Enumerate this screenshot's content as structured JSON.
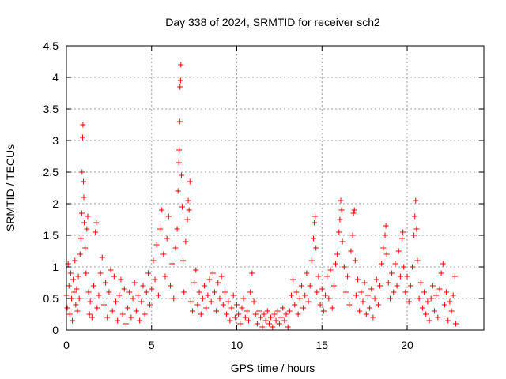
{
  "chart_data": {
    "type": "scatter",
    "title": "Day 338 of 2024, SRMTID for receiver sch2",
    "xlabel": "GPS time / hours",
    "ylabel": "SRMTID / TECUs",
    "xlim": [
      0,
      24.5
    ],
    "ylim": [
      0,
      4.5
    ],
    "xticks": [
      0,
      5,
      10,
      15,
      20
    ],
    "xtick_labels": [
      "0",
      "5",
      "10",
      "15",
      "20"
    ],
    "yticks": [
      0,
      0.5,
      1,
      1.5,
      2,
      2.5,
      3,
      3.5,
      4,
      4.5
    ],
    "ytick_labels": [
      "0",
      "0.5",
      "1",
      "1.5",
      "2",
      "2.5",
      "3",
      "3.5",
      "4",
      "4.5"
    ],
    "grid": true,
    "marker": "plus",
    "marker_color": "#ff0000",
    "series": [
      {
        "name": "sch2",
        "points": [
          [
            0.0,
            0.55
          ],
          [
            0.05,
            0.35
          ],
          [
            0.1,
            1.05
          ],
          [
            0.15,
            0.7
          ],
          [
            0.2,
            0.25
          ],
          [
            0.25,
            0.9
          ],
          [
            0.3,
            0.5
          ],
          [
            0.35,
            0.15
          ],
          [
            0.4,
            0.8
          ],
          [
            0.45,
            0.6
          ],
          [
            0.5,
            1.1
          ],
          [
            0.55,
            0.4
          ],
          [
            0.6,
            0.65
          ],
          [
            0.65,
            0.3
          ],
          [
            0.7,
            0.85
          ],
          [
            0.75,
            0.5
          ],
          [
            0.8,
            1.2
          ],
          [
            0.85,
            1.45
          ],
          [
            0.9,
            1.85
          ],
          [
            0.92,
            2.5
          ],
          [
            0.95,
            3.05
          ],
          [
            0.97,
            3.25
          ],
          [
            1.0,
            2.35
          ],
          [
            1.02,
            2.1
          ],
          [
            1.05,
            1.7
          ],
          [
            1.1,
            1.3
          ],
          [
            1.15,
            0.9
          ],
          [
            1.2,
            1.6
          ],
          [
            1.25,
            1.8
          ],
          [
            1.3,
            0.6
          ],
          [
            1.35,
            0.25
          ],
          [
            1.4,
            0.45
          ],
          [
            1.5,
            0.2
          ],
          [
            1.6,
            0.7
          ],
          [
            1.7,
            1.55
          ],
          [
            1.75,
            1.7
          ],
          [
            1.8,
            0.35
          ],
          [
            1.9,
            0.55
          ],
          [
            2.0,
            0.9
          ],
          [
            2.1,
            1.15
          ],
          [
            2.2,
            0.4
          ],
          [
            2.3,
            0.75
          ],
          [
            2.4,
            0.2
          ],
          [
            2.5,
            0.6
          ],
          [
            2.6,
            0.95
          ],
          [
            2.7,
            0.3
          ],
          [
            2.8,
            0.85
          ],
          [
            2.9,
            0.45
          ],
          [
            3.0,
            0.15
          ],
          [
            3.1,
            0.55
          ],
          [
            3.2,
            0.8
          ],
          [
            3.3,
            0.25
          ],
          [
            3.4,
            0.65
          ],
          [
            3.5,
            0.1
          ],
          [
            3.6,
            0.35
          ],
          [
            3.7,
            0.6
          ],
          [
            3.8,
            0.2
          ],
          [
            3.9,
            0.5
          ],
          [
            4.0,
            0.75
          ],
          [
            4.1,
            0.3
          ],
          [
            4.2,
            0.55
          ],
          [
            4.3,
            0.15
          ],
          [
            4.4,
            0.45
          ],
          [
            4.5,
            0.7
          ],
          [
            4.6,
            0.25
          ],
          [
            4.7,
            0.6
          ],
          [
            4.8,
            0.9
          ],
          [
            4.9,
            0.4
          ],
          [
            5.0,
            0.65
          ],
          [
            5.1,
            1.1
          ],
          [
            5.2,
            0.8
          ],
          [
            5.3,
            1.35
          ],
          [
            5.4,
            0.55
          ],
          [
            5.5,
            1.6
          ],
          [
            5.6,
            1.9
          ],
          [
            5.7,
            1.2
          ],
          [
            5.8,
            0.85
          ],
          [
            5.9,
            1.45
          ],
          [
            6.0,
            1.8
          ],
          [
            6.1,
            0.7
          ],
          [
            6.2,
            1.05
          ],
          [
            6.3,
            0.5
          ],
          [
            6.4,
            1.3
          ],
          [
            6.5,
            1.6
          ],
          [
            6.55,
            2.2
          ],
          [
            6.6,
            2.65
          ],
          [
            6.62,
            2.85
          ],
          [
            6.65,
            3.3
          ],
          [
            6.67,
            3.85
          ],
          [
            6.7,
            3.95
          ],
          [
            6.72,
            4.2
          ],
          [
            6.75,
            2.45
          ],
          [
            6.8,
            1.95
          ],
          [
            6.85,
            1.1
          ],
          [
            6.9,
            0.6
          ],
          [
            7.0,
            1.4
          ],
          [
            7.1,
            1.75
          ],
          [
            7.15,
            2.05
          ],
          [
            7.2,
            1.9
          ],
          [
            7.25,
            2.35
          ],
          [
            7.3,
            0.45
          ],
          [
            7.4,
            0.3
          ],
          [
            7.5,
            0.75
          ],
          [
            7.6,
            0.95
          ],
          [
            7.7,
            0.4
          ],
          [
            7.8,
            0.6
          ],
          [
            7.9,
            0.25
          ],
          [
            8.0,
            0.5
          ],
          [
            8.1,
            0.7
          ],
          [
            8.2,
            0.35
          ],
          [
            8.3,
            0.55
          ],
          [
            8.4,
            0.8
          ],
          [
            8.5,
            0.45
          ],
          [
            8.6,
            0.9
          ],
          [
            8.7,
            0.6
          ],
          [
            8.8,
            0.3
          ],
          [
            8.9,
            0.75
          ],
          [
            9.0,
            0.5
          ],
          [
            9.1,
            0.85
          ],
          [
            9.2,
            0.4
          ],
          [
            9.3,
            0.6
          ],
          [
            9.4,
            0.25
          ],
          [
            9.5,
            0.45
          ],
          [
            9.6,
            0.15
          ],
          [
            9.7,
            0.35
          ],
          [
            9.8,
            0.55
          ],
          [
            9.9,
            0.2
          ],
          [
            10.0,
            0.4
          ],
          [
            10.1,
            0.25
          ],
          [
            10.2,
            0.1
          ],
          [
            10.3,
            0.35
          ],
          [
            10.4,
            0.5
          ],
          [
            10.5,
            0.2
          ],
          [
            10.6,
            0.3
          ],
          [
            10.7,
            0.15
          ],
          [
            10.8,
            0.6
          ],
          [
            10.9,
            0.9
          ],
          [
            11.0,
            0.45
          ],
          [
            11.1,
            0.25
          ],
          [
            11.2,
            0.1
          ],
          [
            11.3,
            0.3
          ],
          [
            11.4,
            0.2
          ],
          [
            11.5,
            0.05
          ],
          [
            11.6,
            0.25
          ],
          [
            11.7,
            0.15
          ],
          [
            11.8,
            0.3
          ],
          [
            11.9,
            0.1
          ],
          [
            12.0,
            0.2
          ],
          [
            12.1,
            0.05
          ],
          [
            12.2,
            0.25
          ],
          [
            12.3,
            0.15
          ],
          [
            12.4,
            0.3
          ],
          [
            12.5,
            0.1
          ],
          [
            12.6,
            0.2
          ],
          [
            12.7,
            0.35
          ],
          [
            12.8,
            0.15
          ],
          [
            12.9,
            0.25
          ],
          [
            13.0,
            0.05
          ],
          [
            13.1,
            0.3
          ],
          [
            13.2,
            0.55
          ],
          [
            13.3,
            0.8
          ],
          [
            13.4,
            0.4
          ],
          [
            13.5,
            0.6
          ],
          [
            13.6,
            0.25
          ],
          [
            13.7,
            0.5
          ],
          [
            13.8,
            0.7
          ],
          [
            13.9,
            0.35
          ],
          [
            14.0,
            0.55
          ],
          [
            14.1,
            0.9
          ],
          [
            14.2,
            0.45
          ],
          [
            14.3,
            0.7
          ],
          [
            14.4,
            1.1
          ],
          [
            14.5,
            1.45
          ],
          [
            14.55,
            1.7
          ],
          [
            14.6,
            1.8
          ],
          [
            14.65,
            1.3
          ],
          [
            14.7,
            0.6
          ],
          [
            14.8,
            0.85
          ],
          [
            14.9,
            0.4
          ],
          [
            15.0,
            0.65
          ],
          [
            15.1,
            0.3
          ],
          [
            15.2,
            0.55
          ],
          [
            15.3,
            0.85
          ],
          [
            15.4,
            0.5
          ],
          [
            15.5,
            0.95
          ],
          [
            15.6,
            0.35
          ],
          [
            15.7,
            0.7
          ],
          [
            15.8,
            1.05
          ],
          [
            15.9,
            1.2
          ],
          [
            16.0,
            1.55
          ],
          [
            16.05,
            1.75
          ],
          [
            16.1,
            2.05
          ],
          [
            16.15,
            1.9
          ],
          [
            16.2,
            1.4
          ],
          [
            16.3,
            1.0
          ],
          [
            16.4,
            0.6
          ],
          [
            16.5,
            0.85
          ],
          [
            16.6,
            0.4
          ],
          [
            16.7,
            1.25
          ],
          [
            16.8,
            1.5
          ],
          [
            16.85,
            1.85
          ],
          [
            16.9,
            1.9
          ],
          [
            16.95,
            1.1
          ],
          [
            17.0,
            0.55
          ],
          [
            17.1,
            0.8
          ],
          [
            17.2,
            0.3
          ],
          [
            17.3,
            0.6
          ],
          [
            17.4,
            0.45
          ],
          [
            17.5,
            0.75
          ],
          [
            17.6,
            0.25
          ],
          [
            17.7,
            0.55
          ],
          [
            17.8,
            0.35
          ],
          [
            17.9,
            0.65
          ],
          [
            18.0,
            0.2
          ],
          [
            18.1,
            0.5
          ],
          [
            18.2,
            0.8
          ],
          [
            18.3,
            0.4
          ],
          [
            18.4,
            0.7
          ],
          [
            18.5,
            1.05
          ],
          [
            18.6,
            1.3
          ],
          [
            18.7,
            1.5
          ],
          [
            18.75,
            1.65
          ],
          [
            18.8,
            1.2
          ],
          [
            18.9,
            0.75
          ],
          [
            19.0,
            0.5
          ],
          [
            19.1,
            0.9
          ],
          [
            19.2,
            0.6
          ],
          [
            19.3,
            1.05
          ],
          [
            19.4,
            0.7
          ],
          [
            19.5,
            1.25
          ],
          [
            19.6,
            0.85
          ],
          [
            19.7,
            1.45
          ],
          [
            19.75,
            1.55
          ],
          [
            19.8,
            1.0
          ],
          [
            19.9,
            0.6
          ],
          [
            20.0,
            0.85
          ],
          [
            20.1,
            0.45
          ],
          [
            20.2,
            0.7
          ],
          [
            20.3,
            1.0
          ],
          [
            20.4,
            1.5
          ],
          [
            20.45,
            1.8
          ],
          [
            20.5,
            2.05
          ],
          [
            20.55,
            1.6
          ],
          [
            20.6,
            1.1
          ],
          [
            20.7,
            0.5
          ],
          [
            20.8,
            0.75
          ],
          [
            20.9,
            0.35
          ],
          [
            21.0,
            0.6
          ],
          [
            21.1,
            0.25
          ],
          [
            21.2,
            0.45
          ],
          [
            21.3,
            0.15
          ],
          [
            21.4,
            0.5
          ],
          [
            21.5,
            0.7
          ],
          [
            21.6,
            0.3
          ],
          [
            21.7,
            0.55
          ],
          [
            21.8,
            0.2
          ],
          [
            21.9,
            0.65
          ],
          [
            22.0,
            0.9
          ],
          [
            22.1,
            1.05
          ],
          [
            22.2,
            0.4
          ],
          [
            22.3,
            0.6
          ],
          [
            22.4,
            0.15
          ],
          [
            22.5,
            0.45
          ],
          [
            22.6,
            0.3
          ],
          [
            22.7,
            0.55
          ],
          [
            22.8,
            0.85
          ],
          [
            22.85,
            0.1
          ]
        ]
      }
    ]
  }
}
